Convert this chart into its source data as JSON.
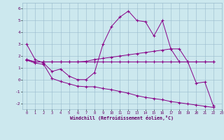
{
  "xlabel": "Windchill (Refroidissement éolien,°C)",
  "background_color": "#cce8ee",
  "line_color": "#880088",
  "xlim": [
    -0.5,
    23
  ],
  "ylim": [
    -2.5,
    6.5
  ],
  "yticks": [
    -2,
    -1,
    0,
    1,
    2,
    3,
    4,
    5,
    6
  ],
  "xticks": [
    0,
    1,
    2,
    3,
    4,
    5,
    6,
    7,
    8,
    9,
    10,
    11,
    12,
    13,
    14,
    15,
    16,
    17,
    18,
    19,
    20,
    21,
    22,
    23
  ],
  "series1_x": [
    0,
    1,
    2,
    3,
    4,
    5,
    6,
    7,
    8,
    9,
    10,
    11,
    12,
    13,
    14,
    15,
    16,
    17,
    18,
    19,
    20,
    21,
    22
  ],
  "series1_y": [
    3.0,
    1.7,
    1.4,
    0.7,
    0.9,
    0.3,
    0.0,
    0.0,
    0.6,
    3.0,
    4.5,
    5.3,
    5.8,
    5.0,
    4.9,
    3.7,
    5.0,
    2.6,
    1.5,
    1.5,
    -0.3,
    -0.2,
    -2.2
  ],
  "series2_x": [
    0,
    1,
    2,
    3,
    4,
    5,
    6,
    7,
    8,
    9,
    10,
    11,
    12,
    13,
    14,
    15,
    16,
    17,
    18,
    19,
    20,
    21,
    22
  ],
  "series2_y": [
    1.7,
    1.5,
    1.5,
    1.5,
    1.5,
    1.5,
    1.5,
    1.55,
    1.7,
    1.8,
    1.9,
    2.0,
    2.1,
    2.2,
    2.3,
    2.4,
    2.5,
    2.6,
    2.6,
    1.5,
    1.5,
    1.5,
    1.5
  ],
  "series3_x": [
    0,
    1,
    2,
    3,
    4,
    5,
    6,
    7,
    8,
    9,
    10,
    11,
    12,
    13,
    14,
    15,
    16,
    17,
    18,
    19,
    20,
    21,
    22
  ],
  "series3_y": [
    1.7,
    1.5,
    1.5,
    1.5,
    1.5,
    1.5,
    1.5,
    1.5,
    1.5,
    1.5,
    1.5,
    1.5,
    1.5,
    1.5,
    1.5,
    1.5,
    1.5,
    1.5,
    1.5,
    1.5,
    1.5,
    1.5,
    1.5
  ],
  "series4_x": [
    0,
    1,
    2,
    3,
    4,
    5,
    6,
    7,
    8,
    9,
    10,
    11,
    12,
    13,
    14,
    15,
    16,
    17,
    18,
    19,
    20,
    21,
    22
  ],
  "series4_y": [
    1.65,
    1.4,
    1.3,
    0.1,
    -0.15,
    -0.35,
    -0.55,
    -0.6,
    -0.6,
    -0.75,
    -0.85,
    -1.0,
    -1.15,
    -1.35,
    -1.5,
    -1.6,
    -1.7,
    -1.85,
    -1.95,
    -2.05,
    -2.15,
    -2.25,
    -2.35
  ]
}
